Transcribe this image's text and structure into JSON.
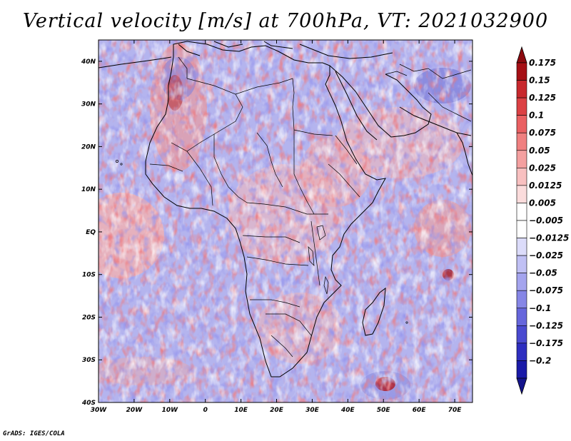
{
  "title": "Vertical velocity [m/s] at 700hPa, VT: 2021032900",
  "footer": "GrADS: IGES/COLA",
  "map": {
    "region": "Africa",
    "lat_labels": [
      "40N",
      "30N",
      "20N",
      "10N",
      "EQ",
      "10S",
      "20S",
      "30S",
      "40S"
    ],
    "lon_labels": [
      "30W",
      "20W",
      "10W",
      "0",
      "10E",
      "20E",
      "30E",
      "40E",
      "50E",
      "60E",
      "70E"
    ]
  },
  "colorbar": {
    "labels": [
      "0.175",
      "0.15",
      "0.125",
      "0.1",
      "0.075",
      "0.05",
      "0.025",
      "0.0125",
      "0.005",
      "-0.005",
      "-0.0125",
      "-0.025",
      "-0.05",
      "-0.075",
      "-0.1",
      "-0.125",
      "-0.175",
      "-0.2"
    ],
    "colors": [
      "#a50f15",
      "#c8282d",
      "#dc4144",
      "#ea6062",
      "#f08080",
      "#f4a0a0",
      "#f8c0c0",
      "#fbdcdc",
      "#ffffff",
      "#ffffff",
      "#dcdcfa",
      "#c0c0f4",
      "#a4a4ee",
      "#8686e6",
      "#6666dc",
      "#4a4ad0",
      "#2e2ec0",
      "#1a1aa8"
    ],
    "top_arrow_color": "#8c0a0f",
    "bottom_arrow_color": "#14148c"
  }
}
